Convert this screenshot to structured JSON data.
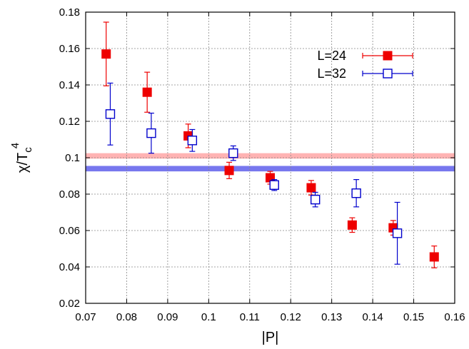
{
  "chart_data": {
    "type": "scatter",
    "xlabel": "|P|",
    "ylabel_main": "χ/T",
    "ylabel_sub": "c",
    "ylabel_sup": "4",
    "xlim": [
      0.07,
      0.16
    ],
    "ylim": [
      0.02,
      0.18
    ],
    "xticks": [
      0.07,
      0.08,
      0.09,
      0.1,
      0.11,
      0.12,
      0.13,
      0.14,
      0.15,
      0.16
    ],
    "yticks": [
      0.02,
      0.04,
      0.06,
      0.08,
      0.1,
      0.12,
      0.14,
      0.16,
      0.18
    ],
    "xtick_labels": [
      "0.07",
      "0.08",
      "0.09",
      "0.1",
      "0.11",
      "0.12",
      "0.13",
      "0.14",
      "0.15",
      "0.16"
    ],
    "ytick_labels": [
      "0.02",
      "0.04",
      "0.06",
      "0.08",
      "0.1",
      "0.12",
      "0.14",
      "0.16",
      "0.18"
    ],
    "grid": true,
    "legend_position": "top-right",
    "bands": [
      {
        "y_low": 0.0995,
        "y_high": 0.1025,
        "color": "#ffb3b3"
      },
      {
        "y_low": 0.0925,
        "y_high": 0.0955,
        "color": "#7777ee"
      }
    ],
    "series": [
      {
        "name": "L=24",
        "color": "#ee0000",
        "marker": "filled-square",
        "x": [
          0.075,
          0.085,
          0.095,
          0.105,
          0.115,
          0.125,
          0.135,
          0.145,
          0.155
        ],
        "y": [
          0.157,
          0.136,
          0.112,
          0.093,
          0.089,
          0.0835,
          0.063,
          0.0615,
          0.0455
        ],
        "err": [
          0.0175,
          0.011,
          0.0065,
          0.0045,
          0.0035,
          0.004,
          0.004,
          0.004,
          0.006
        ]
      },
      {
        "name": "L=32",
        "color": "#0000cc",
        "marker": "open-square",
        "x": [
          0.076,
          0.086,
          0.096,
          0.106,
          0.116,
          0.126,
          0.136,
          0.146
        ],
        "y": [
          0.124,
          0.1135,
          0.1095,
          0.1025,
          0.085,
          0.077,
          0.0805,
          0.0585
        ],
        "err": [
          0.017,
          0.011,
          0.006,
          0.004,
          0.003,
          0.004,
          0.0075,
          0.017
        ]
      }
    ]
  }
}
